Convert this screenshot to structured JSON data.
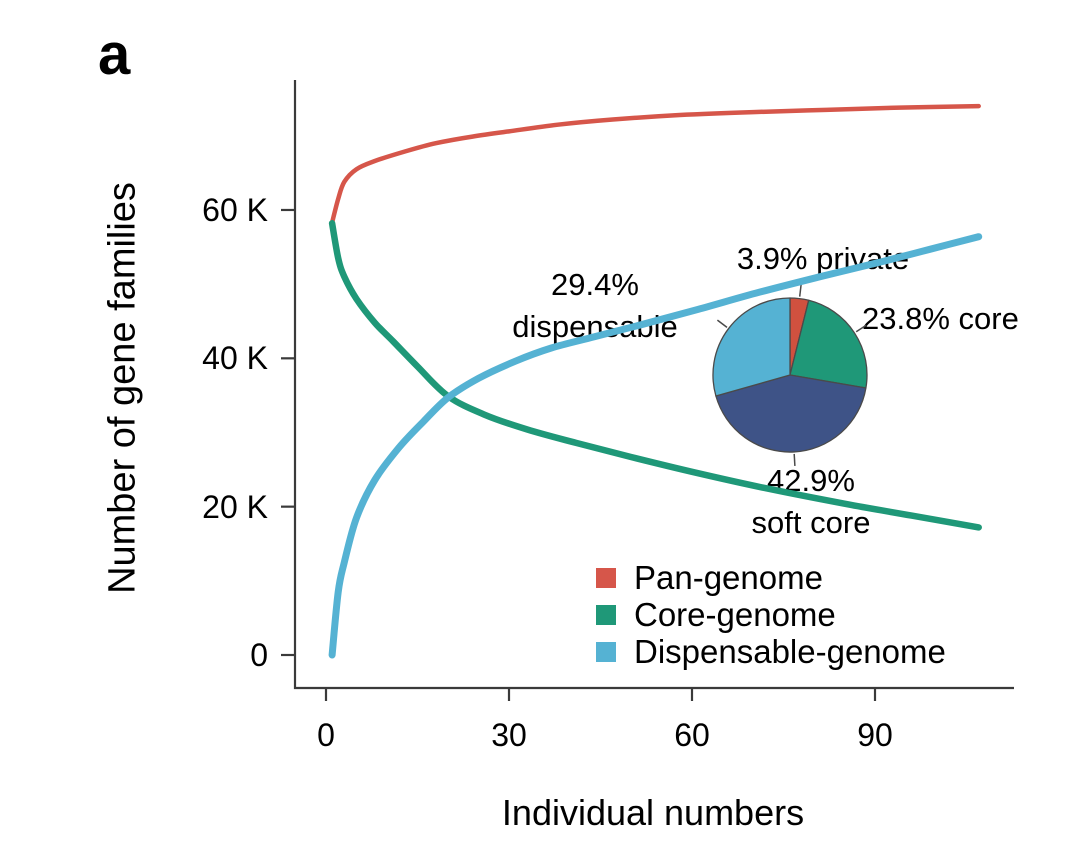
{
  "panel_label": "a",
  "colors": {
    "pan_red": "#d6564a",
    "core_green": "#1f9878",
    "dispensable_blue": "#55b2d3",
    "soft_core_dark_blue": "#3e5387",
    "axis": "#3a3a3a",
    "pie_outline": "#4a4a4a",
    "text": "#000000",
    "background": "#ffffff"
  },
  "chart_data": [
    {
      "type": "line",
      "title": "",
      "xlabel": "Individual numbers",
      "ylabel": "Number of gene families",
      "xlim": [
        0,
        113
      ],
      "ylim": [
        0,
        75500
      ],
      "grid": false,
      "y_unit": "thousands of gene families",
      "x_ticks": [
        {
          "value": 0,
          "label": "0"
        },
        {
          "value": 30,
          "label": "30"
        },
        {
          "value": 60,
          "label": "60"
        },
        {
          "value": 90,
          "label": "90"
        }
      ],
      "y_ticks": [
        {
          "value": 0,
          "label": "0"
        },
        {
          "value": 20,
          "label": "20 K"
        },
        {
          "value": 40,
          "label": "40 K"
        },
        {
          "value": 60,
          "label": "60 K"
        }
      ],
      "series": [
        {
          "name": "Pan-genome",
          "color": "#d6564a",
          "stroke_width": 4.5,
          "points": [
            [
              1,
              58.3
            ],
            [
              2,
              61.5
            ],
            [
              3,
              63.8
            ],
            [
              5,
              65.5
            ],
            [
              8,
              66.6
            ],
            [
              13,
              67.9
            ],
            [
              18,
              69.0
            ],
            [
              24,
              69.9
            ],
            [
              30,
              70.6
            ],
            [
              38,
              71.5
            ],
            [
              47,
              72.2
            ],
            [
              58,
              72.8
            ],
            [
              70,
              73.2
            ],
            [
              82,
              73.5
            ],
            [
              94,
              73.8
            ],
            [
              107,
              74.0
            ]
          ]
        },
        {
          "name": "Core-genome",
          "color": "#1f9878",
          "stroke_width": 6.5,
          "points": [
            [
              1,
              58.2
            ],
            [
              2,
              53.5
            ],
            [
              3,
              51.0
            ],
            [
              5,
              48.0
            ],
            [
              8,
              44.8
            ],
            [
              11,
              42.3
            ],
            [
              15,
              38.9
            ],
            [
              20,
              34.9
            ],
            [
              26,
              32.4
            ],
            [
              33,
              30.4
            ],
            [
              41,
              28.6
            ],
            [
              50,
              26.7
            ],
            [
              60,
              24.7
            ],
            [
              72,
              22.5
            ],
            [
              85,
              20.4
            ],
            [
              96,
              18.8
            ],
            [
              107,
              17.2
            ]
          ]
        },
        {
          "name": "Dispensable-genome",
          "color": "#55b2d3",
          "stroke_width": 7,
          "points": [
            [
              1,
              0
            ],
            [
              2,
              8.5
            ],
            [
              3,
              12.5
            ],
            [
              5,
              18.5
            ],
            [
              8,
              23.6
            ],
            [
              12,
              28.0
            ],
            [
              16,
              31.5
            ],
            [
              20,
              34.7
            ],
            [
              25,
              37.3
            ],
            [
              31,
              39.6
            ],
            [
              37,
              41.4
            ],
            [
              44,
              42.9
            ],
            [
              52,
              44.6
            ],
            [
              61,
              46.6
            ],
            [
              71,
              48.9
            ],
            [
              81,
              51.0
            ],
            [
              91,
              53.0
            ],
            [
              99,
              54.7
            ],
            [
              107,
              56.4
            ]
          ]
        }
      ],
      "legend": {
        "position": "bottom-right-inside",
        "items": [
          {
            "label": "Pan-genome",
            "color": "#d6564a"
          },
          {
            "label": "Core-genome",
            "color": "#1f9878"
          },
          {
            "label": "Dispensable-genome",
            "color": "#55b2d3"
          }
        ]
      }
    },
    {
      "type": "pie",
      "title": "",
      "slices": [
        {
          "label": "private",
          "pct": 3.9,
          "color": "#d0513f"
        },
        {
          "label": "core",
          "pct": 23.8,
          "color": "#1f9878"
        },
        {
          "label": "soft core",
          "pct": 42.9,
          "color": "#3e5387"
        },
        {
          "label": "dispensable",
          "pct": 29.4,
          "color": "#55b2d3"
        }
      ],
      "annotations": [
        {
          "lines": [
            "3.9% private"
          ],
          "x": 823,
          "y": 259,
          "align": "center"
        },
        {
          "lines": [
            "23.8% core"
          ],
          "x": 862,
          "y": 319,
          "align": "left"
        },
        {
          "lines": [
            "42.9%",
            "soft core"
          ],
          "x": 811,
          "y": 502,
          "align": "center"
        },
        {
          "lines": [
            "29.4%",
            "dispensable"
          ],
          "x": 595,
          "y": 306,
          "align": "center"
        }
      ]
    }
  ]
}
